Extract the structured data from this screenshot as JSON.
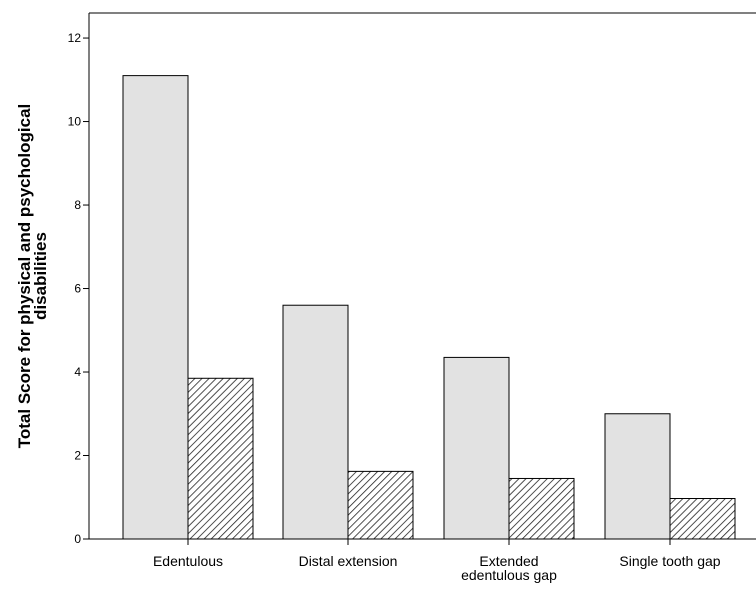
{
  "chart_data": {
    "type": "bar",
    "title": "",
    "xlabel": "",
    "ylabel": [
      "Total Score for physical and psychological",
      "disabilities"
    ],
    "categories": [
      [
        "Edentulous"
      ],
      [
        "Distal extension"
      ],
      [
        "Extended",
        "edentulous gap"
      ],
      [
        "Single tooth gap"
      ]
    ],
    "series": [
      {
        "values": [
          11.1,
          5.6,
          4.35,
          3.0
        ],
        "fill": "#e2e2e2",
        "pattern": "solid"
      },
      {
        "values": [
          3.85,
          1.62,
          1.45,
          0.97
        ],
        "fill": "#ffffff",
        "pattern": "diagonal-hatch"
      }
    ],
    "ylim": [
      0,
      12.6
    ],
    "yticks": [
      0,
      2,
      4,
      6,
      8,
      10,
      12
    ],
    "grid": false,
    "legend": "none"
  }
}
